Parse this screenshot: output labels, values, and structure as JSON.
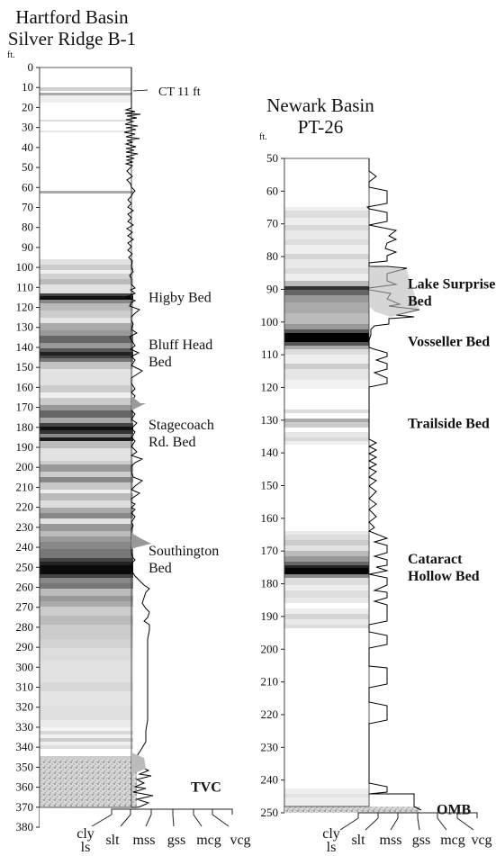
{
  "left_column": {
    "title": [
      "Hartford Basin",
      "Silver Ridge B-1"
    ],
    "unit": "ft.",
    "depth_ticks": [
      0,
      10,
      20,
      30,
      40,
      50,
      60,
      70,
      80,
      90,
      100,
      110,
      120,
      130,
      140,
      150,
      160,
      170,
      180,
      190,
      200,
      210,
      220,
      230,
      240,
      250,
      260,
      270,
      280,
      290,
      300,
      310,
      320,
      330,
      340,
      350,
      360,
      370,
      380
    ],
    "core_top_label": "CT 11 ft",
    "bed_labels": [
      {
        "lines": [
          "Higby Bed"
        ],
        "depth": 115,
        "bold": false
      },
      {
        "lines": [
          "Bluff Head",
          "Bed"
        ],
        "depth": 143,
        "bold": false
      },
      {
        "lines": [
          "Stagecoach",
          "Rd. Bed"
        ],
        "depth": 183,
        "bold": false
      },
      {
        "lines": [
          "Southington",
          "Bed"
        ],
        "depth": 246,
        "bold": false
      },
      {
        "lines": [
          "TVC"
        ],
        "depth": 360,
        "bold": true
      }
    ],
    "grain_size_labels": [
      "cly",
      "ls",
      "slt",
      "mss",
      "gss",
      "mcg",
      "vcg"
    ]
  },
  "right_column": {
    "title": [
      "Newark Basin",
      "PT-26"
    ],
    "unit": "ft.",
    "depth_ticks": [
      50,
      60,
      70,
      80,
      90,
      100,
      110,
      120,
      130,
      140,
      150,
      160,
      170,
      180,
      190,
      200,
      210,
      220,
      230,
      240,
      250
    ],
    "bed_labels": [
      {
        "lines": [
          "Lake Surprise",
          "Bed"
        ],
        "depth": 91,
        "bold": true
      },
      {
        "lines": [
          "Vosseller Bed"
        ],
        "depth": 106,
        "bold": true
      },
      {
        "lines": [
          "Trailside Bed"
        ],
        "depth": 131,
        "bold": true
      },
      {
        "lines": [
          "Cataract",
          "Hollow Bed"
        ],
        "depth": 175,
        "bold": true
      },
      {
        "lines": [
          "OMB"
        ],
        "depth": 249,
        "bold": true
      }
    ],
    "grain_size_labels": [
      "cly",
      "ls",
      "slt",
      "mss",
      "gss",
      "mcg",
      "vcg"
    ]
  }
}
